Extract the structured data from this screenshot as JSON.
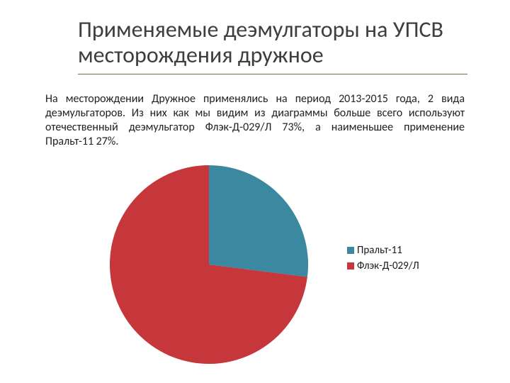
{
  "title": "Применяемые деэмулгаторы на УПСВ месторождения дружное",
  "paragraph": "На месторождении Дружное применялись на период 2013-2015 года, 2 вида деэмульгаторов. Из них как мы видим из диаграммы больше всего используют отечественный деэмульгатор Флэк-Д-029/Л 73%, а наименьшее применение Пральт-11 27%.",
  "title_color": "#3e3e3e",
  "title_fontsize": 32,
  "underline_color": "#7a6a4a",
  "text_color": "#222222",
  "text_fontsize": 16,
  "background_color": "#ffffff",
  "chart": {
    "type": "pie",
    "radius": 140,
    "background_color": "#ffffff",
    "start_angle_deg": -90,
    "direction": "clockwise",
    "slices": [
      {
        "label": "Пральт-11",
        "value": 27,
        "color": "#3a89a0"
      },
      {
        "label": "Флэк-Д-029/Л",
        "value": 73,
        "color": "#c5373a"
      }
    ],
    "legend": {
      "position": "right",
      "fontsize": 15,
      "text_color": "#1a1a1a",
      "swatch_size": 10
    }
  }
}
